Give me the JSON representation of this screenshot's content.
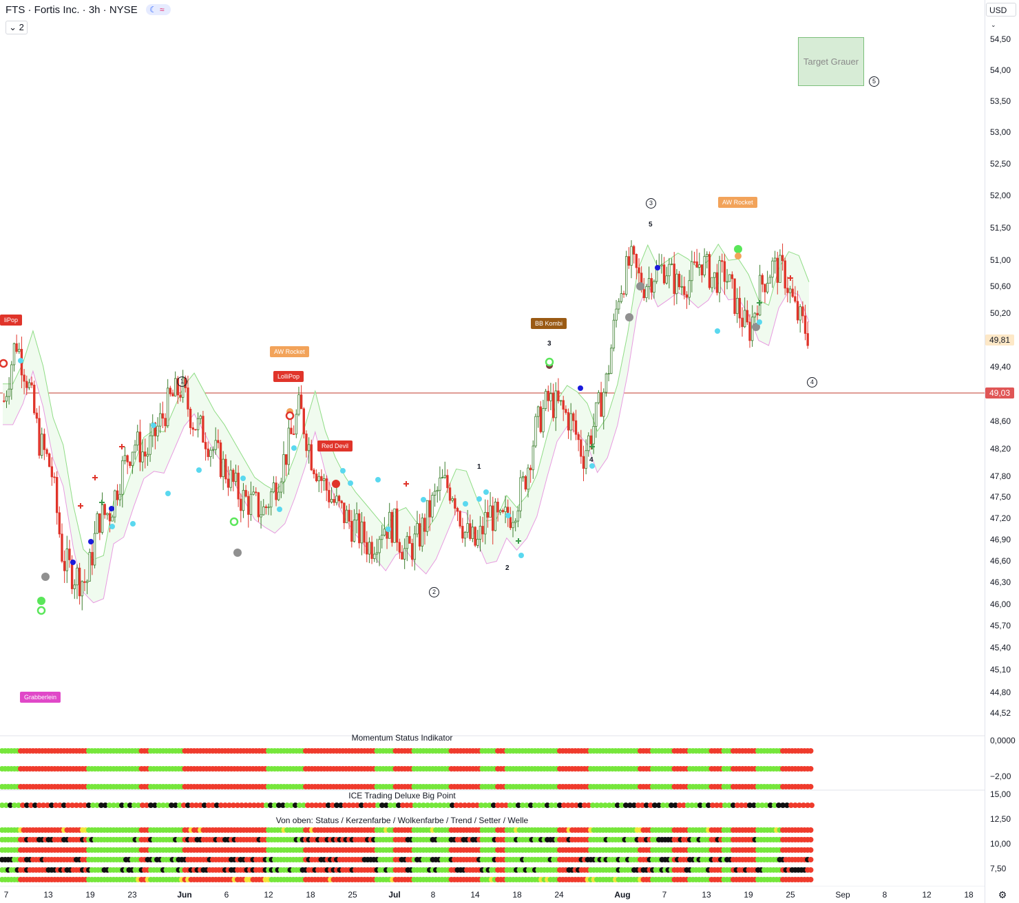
{
  "header": {
    "symbol": "FTS",
    "title": "FTS · Fortis Inc. · 3h · NYSE",
    "badge_moon_icon": "moon-icon",
    "badge_wave_icon": "wave-icon",
    "collapse_count": "2"
  },
  "currency": "USD",
  "price_axis": [
    "54,50",
    "54,00",
    "53,50",
    "53,00",
    "52,50",
    "52,00",
    "51,50",
    "51,00",
    "50,60",
    "50,20",
    "49,40",
    "48,60",
    "48,20",
    "47,80",
    "47,50",
    "47,20",
    "46,90",
    "46,60",
    "46,30",
    "46,00",
    "45,70",
    "45,40",
    "45,10",
    "44,80",
    "44,52"
  ],
  "current_price": "49,81",
  "hline_price": "49,03",
  "oscillator_axis": [
    "0,0000",
    "−2,00"
  ],
  "bigpoint_axis": [
    "15,00",
    "12,50",
    "10,00",
    "7,50"
  ],
  "time_axis": [
    "7",
    "13",
    "19",
    "23",
    "Jun",
    "6",
    "12",
    "18",
    "25",
    "Jul",
    "8",
    "14",
    "18",
    "24",
    "Aug",
    "7",
    "13",
    "19",
    "25",
    "Sep",
    "8",
    "12",
    "18"
  ],
  "panes": {
    "momentum_title": "Momentum Status Indikator",
    "bigpoint_title": "ICE Trading Deluxe Big Point",
    "setup_title": "Von oben: Status / Kerzenfarbe / Wolkenfarbe / Trend / Setter / Welle"
  },
  "signals": {
    "lollipop_1": "liPop",
    "aw_rocket_1": "AW Rocket",
    "lollipop_2": "LolliPop",
    "red_devil": "Red Devil",
    "bb_kombi": "BB Kombi",
    "aw_rocket_2": "AW Rocket",
    "grabberlein": "Grabberlein"
  },
  "target_box": "Target Grauer",
  "waves": [
    "1",
    "2",
    "3",
    "4",
    "5"
  ],
  "sub_counts": [
    "1",
    "2",
    "3",
    "4",
    "5"
  ],
  "colors": {
    "up": "#131722",
    "down": "#e0342a",
    "cloud_green": "#8fdc85",
    "cloud_pink": "#e79be0",
    "hline": "#c0392b",
    "osc_green": "#76e63b",
    "osc_red": "#ef3b2c",
    "osc_yellow": "#f3e43a",
    "osc_black": "#111111"
  },
  "chart_data": {
    "type": "candlestick",
    "interval": "3h",
    "ylim": [
      44.4,
      54.8
    ],
    "close_path": [
      48.9,
      49.8,
      49.2,
      48.3,
      47.9,
      46.6,
      46.4,
      46.3,
      47.2,
      47.3,
      47.9,
      48.3,
      48.1,
      48.5,
      48.9,
      49.1,
      48.6,
      48.4,
      48.1,
      47.8,
      47.5,
      47.4,
      47.3,
      47.7,
      48.2,
      48.8,
      48.1,
      47.7,
      47.4,
      47.2,
      47.0,
      46.8,
      47.1,
      47.1,
      46.7,
      46.9,
      47.3,
      47.7,
      47.6,
      47.0,
      46.8,
      47.3,
      47.1,
      47.3,
      47.7,
      48.5,
      48.9,
      48.8,
      48.6,
      48.1,
      48.6,
      49.2,
      50.5,
      51.0,
      50.6,
      50.8,
      50.9,
      50.6,
      50.7,
      51.0,
      50.7,
      50.8,
      50.3,
      49.9,
      50.6,
      50.9,
      50.8,
      50.2,
      49.9
    ]
  }
}
